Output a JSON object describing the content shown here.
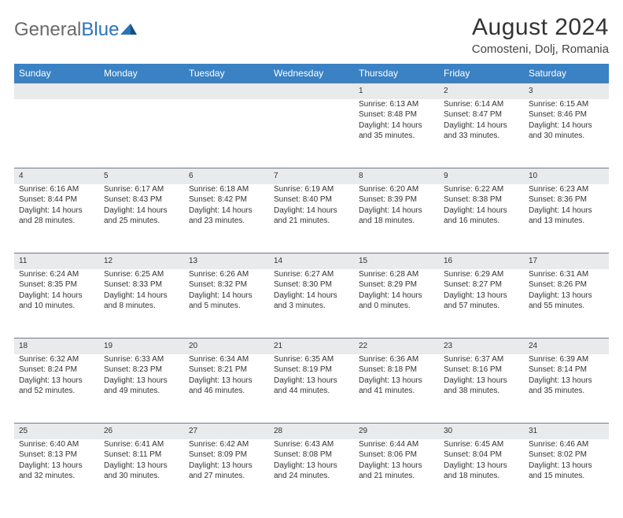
{
  "brand": {
    "part1": "General",
    "part2": "Blue"
  },
  "title": {
    "month": "August 2024",
    "location": "Comosteni, Dolj, Romania"
  },
  "colors": {
    "header_bg": "#3a82c4",
    "header_text": "#ffffff",
    "daynum_bg": "#e9eaec",
    "rule": "#6f7b88",
    "brand_blue": "#2a74b8",
    "brand_grey": "#6a6a6a"
  },
  "day_headers": [
    "Sunday",
    "Monday",
    "Tuesday",
    "Wednesday",
    "Thursday",
    "Friday",
    "Saturday"
  ],
  "weeks": [
    [
      null,
      null,
      null,
      null,
      {
        "n": "1",
        "sunrise": "Sunrise: 6:13 AM",
        "sunset": "Sunset: 8:48 PM",
        "day1": "Daylight: 14 hours",
        "day2": "and 35 minutes."
      },
      {
        "n": "2",
        "sunrise": "Sunrise: 6:14 AM",
        "sunset": "Sunset: 8:47 PM",
        "day1": "Daylight: 14 hours",
        "day2": "and 33 minutes."
      },
      {
        "n": "3",
        "sunrise": "Sunrise: 6:15 AM",
        "sunset": "Sunset: 8:46 PM",
        "day1": "Daylight: 14 hours",
        "day2": "and 30 minutes."
      }
    ],
    [
      {
        "n": "4",
        "sunrise": "Sunrise: 6:16 AM",
        "sunset": "Sunset: 8:44 PM",
        "day1": "Daylight: 14 hours",
        "day2": "and 28 minutes."
      },
      {
        "n": "5",
        "sunrise": "Sunrise: 6:17 AM",
        "sunset": "Sunset: 8:43 PM",
        "day1": "Daylight: 14 hours",
        "day2": "and 25 minutes."
      },
      {
        "n": "6",
        "sunrise": "Sunrise: 6:18 AM",
        "sunset": "Sunset: 8:42 PM",
        "day1": "Daylight: 14 hours",
        "day2": "and 23 minutes."
      },
      {
        "n": "7",
        "sunrise": "Sunrise: 6:19 AM",
        "sunset": "Sunset: 8:40 PM",
        "day1": "Daylight: 14 hours",
        "day2": "and 21 minutes."
      },
      {
        "n": "8",
        "sunrise": "Sunrise: 6:20 AM",
        "sunset": "Sunset: 8:39 PM",
        "day1": "Daylight: 14 hours",
        "day2": "and 18 minutes."
      },
      {
        "n": "9",
        "sunrise": "Sunrise: 6:22 AM",
        "sunset": "Sunset: 8:38 PM",
        "day1": "Daylight: 14 hours",
        "day2": "and 16 minutes."
      },
      {
        "n": "10",
        "sunrise": "Sunrise: 6:23 AM",
        "sunset": "Sunset: 8:36 PM",
        "day1": "Daylight: 14 hours",
        "day2": "and 13 minutes."
      }
    ],
    [
      {
        "n": "11",
        "sunrise": "Sunrise: 6:24 AM",
        "sunset": "Sunset: 8:35 PM",
        "day1": "Daylight: 14 hours",
        "day2": "and 10 minutes."
      },
      {
        "n": "12",
        "sunrise": "Sunrise: 6:25 AM",
        "sunset": "Sunset: 8:33 PM",
        "day1": "Daylight: 14 hours",
        "day2": "and 8 minutes."
      },
      {
        "n": "13",
        "sunrise": "Sunrise: 6:26 AM",
        "sunset": "Sunset: 8:32 PM",
        "day1": "Daylight: 14 hours",
        "day2": "and 5 minutes."
      },
      {
        "n": "14",
        "sunrise": "Sunrise: 6:27 AM",
        "sunset": "Sunset: 8:30 PM",
        "day1": "Daylight: 14 hours",
        "day2": "and 3 minutes."
      },
      {
        "n": "15",
        "sunrise": "Sunrise: 6:28 AM",
        "sunset": "Sunset: 8:29 PM",
        "day1": "Daylight: 14 hours",
        "day2": "and 0 minutes."
      },
      {
        "n": "16",
        "sunrise": "Sunrise: 6:29 AM",
        "sunset": "Sunset: 8:27 PM",
        "day1": "Daylight: 13 hours",
        "day2": "and 57 minutes."
      },
      {
        "n": "17",
        "sunrise": "Sunrise: 6:31 AM",
        "sunset": "Sunset: 8:26 PM",
        "day1": "Daylight: 13 hours",
        "day2": "and 55 minutes."
      }
    ],
    [
      {
        "n": "18",
        "sunrise": "Sunrise: 6:32 AM",
        "sunset": "Sunset: 8:24 PM",
        "day1": "Daylight: 13 hours",
        "day2": "and 52 minutes."
      },
      {
        "n": "19",
        "sunrise": "Sunrise: 6:33 AM",
        "sunset": "Sunset: 8:23 PM",
        "day1": "Daylight: 13 hours",
        "day2": "and 49 minutes."
      },
      {
        "n": "20",
        "sunrise": "Sunrise: 6:34 AM",
        "sunset": "Sunset: 8:21 PM",
        "day1": "Daylight: 13 hours",
        "day2": "and 46 minutes."
      },
      {
        "n": "21",
        "sunrise": "Sunrise: 6:35 AM",
        "sunset": "Sunset: 8:19 PM",
        "day1": "Daylight: 13 hours",
        "day2": "and 44 minutes."
      },
      {
        "n": "22",
        "sunrise": "Sunrise: 6:36 AM",
        "sunset": "Sunset: 8:18 PM",
        "day1": "Daylight: 13 hours",
        "day2": "and 41 minutes."
      },
      {
        "n": "23",
        "sunrise": "Sunrise: 6:37 AM",
        "sunset": "Sunset: 8:16 PM",
        "day1": "Daylight: 13 hours",
        "day2": "and 38 minutes."
      },
      {
        "n": "24",
        "sunrise": "Sunrise: 6:39 AM",
        "sunset": "Sunset: 8:14 PM",
        "day1": "Daylight: 13 hours",
        "day2": "and 35 minutes."
      }
    ],
    [
      {
        "n": "25",
        "sunrise": "Sunrise: 6:40 AM",
        "sunset": "Sunset: 8:13 PM",
        "day1": "Daylight: 13 hours",
        "day2": "and 32 minutes."
      },
      {
        "n": "26",
        "sunrise": "Sunrise: 6:41 AM",
        "sunset": "Sunset: 8:11 PM",
        "day1": "Daylight: 13 hours",
        "day2": "and 30 minutes."
      },
      {
        "n": "27",
        "sunrise": "Sunrise: 6:42 AM",
        "sunset": "Sunset: 8:09 PM",
        "day1": "Daylight: 13 hours",
        "day2": "and 27 minutes."
      },
      {
        "n": "28",
        "sunrise": "Sunrise: 6:43 AM",
        "sunset": "Sunset: 8:08 PM",
        "day1": "Daylight: 13 hours",
        "day2": "and 24 minutes."
      },
      {
        "n": "29",
        "sunrise": "Sunrise: 6:44 AM",
        "sunset": "Sunset: 8:06 PM",
        "day1": "Daylight: 13 hours",
        "day2": "and 21 minutes."
      },
      {
        "n": "30",
        "sunrise": "Sunrise: 6:45 AM",
        "sunset": "Sunset: 8:04 PM",
        "day1": "Daylight: 13 hours",
        "day2": "and 18 minutes."
      },
      {
        "n": "31",
        "sunrise": "Sunrise: 6:46 AM",
        "sunset": "Sunset: 8:02 PM",
        "day1": "Daylight: 13 hours",
        "day2": "and 15 minutes."
      }
    ]
  ]
}
